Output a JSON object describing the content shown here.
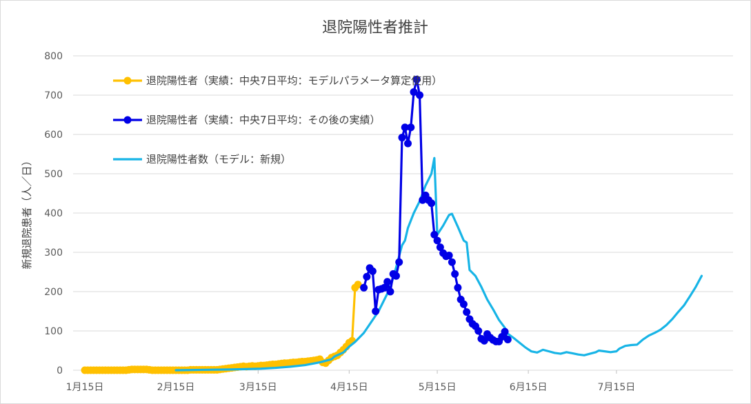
{
  "chart_data": {
    "type": "line",
    "title": "退院陽性者推計",
    "ylabel": "新規退院患者（人／日）",
    "xlabel": "",
    "ylim": [
      0,
      800
    ],
    "yticks": [
      "0",
      "100",
      "200",
      "300",
      "400",
      "500",
      "600",
      "700",
      "800"
    ],
    "xticks": [
      "1月15日",
      "2月15日",
      "3月15日",
      "4月15日",
      "5月15日",
      "6月15日",
      "7月15日"
    ],
    "legend_position": "upper-left-inside",
    "grid": "horizontal",
    "series": [
      {
        "name": "退院陽性者（実績：中央7日平均：モデルパラメータ算定使用）",
        "color": "#ffc000",
        "marker": "circle",
        "points": [
          [
            0,
            0
          ],
          [
            1,
            0
          ],
          [
            2,
            0
          ],
          [
            3,
            0
          ],
          [
            4,
            0
          ],
          [
            5,
            0
          ],
          [
            6,
            0
          ],
          [
            7,
            0
          ],
          [
            8,
            0
          ],
          [
            9,
            0
          ],
          [
            10,
            0
          ],
          [
            11,
            0
          ],
          [
            12,
            0
          ],
          [
            13,
            0
          ],
          [
            14,
            0
          ],
          [
            15,
            1
          ],
          [
            16,
            2
          ],
          [
            17,
            2
          ],
          [
            18,
            2
          ],
          [
            19,
            2
          ],
          [
            20,
            2
          ],
          [
            21,
            2
          ],
          [
            22,
            1
          ],
          [
            23,
            0
          ],
          [
            24,
            0
          ],
          [
            25,
            0
          ],
          [
            26,
            0
          ],
          [
            27,
            0
          ],
          [
            28,
            0
          ],
          [
            29,
            0
          ],
          [
            30,
            0
          ],
          [
            31,
            0
          ],
          [
            32,
            0
          ],
          [
            33,
            0
          ],
          [
            34,
            0
          ],
          [
            35,
            0
          ],
          [
            36,
            1
          ],
          [
            37,
            1
          ],
          [
            38,
            1
          ],
          [
            39,
            1
          ],
          [
            40,
            1
          ],
          [
            41,
            1
          ],
          [
            42,
            1
          ],
          [
            43,
            1
          ],
          [
            44,
            1
          ],
          [
            45,
            1
          ],
          [
            46,
            2
          ],
          [
            47,
            3
          ],
          [
            48,
            4
          ],
          [
            49,
            5
          ],
          [
            50,
            6
          ],
          [
            51,
            7
          ],
          [
            52,
            8
          ],
          [
            53,
            9
          ],
          [
            54,
            10
          ],
          [
            55,
            9
          ],
          [
            56,
            10
          ],
          [
            57,
            11
          ],
          [
            58,
            10
          ],
          [
            59,
            11
          ],
          [
            60,
            12
          ],
          [
            61,
            12
          ],
          [
            62,
            13
          ],
          [
            63,
            14
          ],
          [
            64,
            15
          ],
          [
            65,
            15
          ],
          [
            66,
            16
          ],
          [
            67,
            17
          ],
          [
            68,
            18
          ],
          [
            69,
            18
          ],
          [
            70,
            19
          ],
          [
            71,
            20
          ],
          [
            72,
            20
          ],
          [
            73,
            21
          ],
          [
            74,
            22
          ],
          [
            75,
            22
          ],
          [
            76,
            23
          ],
          [
            77,
            24
          ],
          [
            78,
            25
          ],
          [
            79,
            26
          ],
          [
            80,
            28
          ],
          [
            81,
            20
          ],
          [
            82,
            18
          ],
          [
            83,
            25
          ],
          [
            84,
            32
          ],
          [
            85,
            35
          ],
          [
            86,
            38
          ],
          [
            87,
            45
          ],
          [
            88,
            52
          ],
          [
            89,
            60
          ],
          [
            90,
            70
          ],
          [
            91,
            75
          ],
          [
            92,
            210
          ],
          [
            93,
            218
          ]
        ]
      },
      {
        "name": "退院陽性者（実績：中央7日平均：その後の実績）",
        "color": "#0000e6",
        "marker": "circle",
        "points": [
          [
            95,
            210
          ],
          [
            96,
            238
          ],
          [
            97,
            260
          ],
          [
            98,
            252
          ],
          [
            99,
            150
          ],
          [
            100,
            205
          ],
          [
            101,
            207
          ],
          [
            102,
            210
          ],
          [
            103,
            225
          ],
          [
            104,
            200
          ],
          [
            105,
            245
          ],
          [
            106,
            240
          ],
          [
            107,
            275
          ],
          [
            108,
            592
          ],
          [
            109,
            618
          ],
          [
            110,
            577
          ],
          [
            111,
            618
          ],
          [
            112,
            708
          ],
          [
            113,
            740
          ],
          [
            114,
            700
          ],
          [
            115,
            433
          ],
          [
            116,
            445
          ],
          [
            117,
            433
          ],
          [
            118,
            425
          ],
          [
            119,
            345
          ],
          [
            120,
            330
          ],
          [
            121,
            313
          ],
          [
            122,
            298
          ],
          [
            123,
            290
          ],
          [
            124,
            292
          ],
          [
            125,
            275
          ],
          [
            126,
            245
          ],
          [
            127,
            210
          ],
          [
            128,
            180
          ],
          [
            129,
            168
          ],
          [
            130,
            148
          ],
          [
            131,
            130
          ],
          [
            132,
            118
          ],
          [
            133,
            112
          ],
          [
            134,
            100
          ],
          [
            135,
            80
          ],
          [
            136,
            75
          ],
          [
            137,
            92
          ],
          [
            138,
            83
          ],
          [
            139,
            77
          ],
          [
            140,
            73
          ],
          [
            141,
            73
          ],
          [
            142,
            85
          ],
          [
            143,
            98
          ],
          [
            144,
            78
          ]
        ]
      },
      {
        "name": "退院陽性者数（モデル：新規）",
        "color": "#17b4e6",
        "marker": "none",
        "points": [
          [
            31,
            0
          ],
          [
            40,
            1
          ],
          [
            50,
            2
          ],
          [
            60,
            4
          ],
          [
            65,
            6
          ],
          [
            70,
            9
          ],
          [
            75,
            13
          ],
          [
            80,
            20
          ],
          [
            84,
            28
          ],
          [
            85,
            35
          ],
          [
            88,
            45
          ],
          [
            90,
            60
          ],
          [
            92,
            72
          ],
          [
            95,
            95
          ],
          [
            100,
            150
          ],
          [
            104,
            210
          ],
          [
            106,
            262
          ],
          [
            108,
            318
          ],
          [
            109,
            330
          ],
          [
            110,
            362
          ],
          [
            112,
            400
          ],
          [
            114,
            430
          ],
          [
            116,
            470
          ],
          [
            118,
            500
          ],
          [
            119,
            540
          ],
          [
            120,
            345
          ],
          [
            122,
            368
          ],
          [
            124,
            395
          ],
          [
            125,
            398
          ],
          [
            127,
            365
          ],
          [
            129,
            330
          ],
          [
            130,
            325
          ],
          [
            131,
            255
          ],
          [
            133,
            240
          ],
          [
            135,
            212
          ],
          [
            137,
            180
          ],
          [
            139,
            155
          ],
          [
            141,
            128
          ],
          [
            143,
            108
          ],
          [
            144,
            93
          ],
          [
            146,
            82
          ],
          [
            148,
            70
          ],
          [
            150,
            58
          ],
          [
            152,
            48
          ],
          [
            154,
            45
          ],
          [
            156,
            52
          ],
          [
            158,
            48
          ],
          [
            160,
            44
          ],
          [
            162,
            42
          ],
          [
            164,
            46
          ],
          [
            166,
            43
          ],
          [
            168,
            40
          ],
          [
            170,
            38
          ],
          [
            172,
            42
          ],
          [
            174,
            46
          ],
          [
            175,
            50
          ],
          [
            177,
            48
          ],
          [
            179,
            46
          ],
          [
            181,
            48
          ],
          [
            182,
            55
          ],
          [
            184,
            62
          ],
          [
            186,
            64
          ],
          [
            188,
            65
          ],
          [
            190,
            78
          ],
          [
            192,
            88
          ],
          [
            194,
            95
          ],
          [
            196,
            103
          ],
          [
            198,
            115
          ],
          [
            200,
            130
          ],
          [
            202,
            148
          ],
          [
            204,
            165
          ],
          [
            206,
            188
          ],
          [
            208,
            212
          ],
          [
            210,
            240
          ]
        ]
      }
    ]
  }
}
